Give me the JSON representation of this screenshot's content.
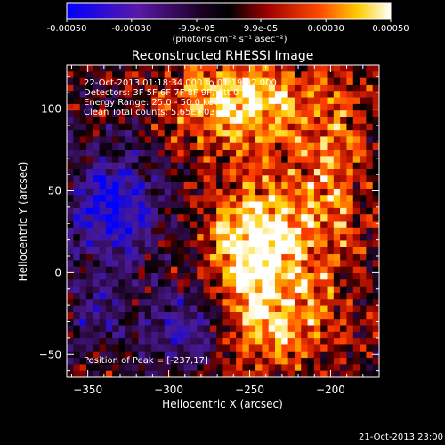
{
  "colorbar": {
    "ticks": [
      "-0.00050",
      "-0.00030",
      "-9.9e-05",
      "9.9e-05",
      "0.00030",
      "0.00050"
    ],
    "tick_values": [
      -0.0005,
      -0.0003,
      -9.9e-05,
      9.9e-05,
      0.0003,
      0.0005
    ],
    "range": [
      -0.0005,
      0.0005
    ],
    "unit": "(photons cm⁻² s⁻¹ asec⁻²)"
  },
  "chart_data": {
    "type": "heatmap",
    "title": "Reconstructed RHESSI Image",
    "xlabel": "Heliocentric X (arcsec)",
    "ylabel": "Heliocentric Y (arcsec)",
    "xlim": [
      -363,
      -170
    ],
    "ylim": [
      -64,
      127
    ],
    "xticks": [
      -350,
      -300,
      -250,
      -200
    ],
    "yticks": [
      -50,
      0,
      50,
      100
    ],
    "xtick_labels": [
      "−350",
      "−300",
      "−250",
      "−200"
    ],
    "ytick_labels": [
      "−50",
      "0",
      "50",
      "100"
    ],
    "colormap": [
      "#0000ff",
      "#4a1a8a",
      "#000000",
      "#8a0000",
      "#ff3000",
      "#ffd400",
      "#ffffff"
    ],
    "peak": {
      "x": -237,
      "y": 17
    },
    "annotations": {
      "time": "22-Oct-2013 01:18:34.000 to 01:19:32.000",
      "detectors": "Detectors: 3F 5F 6F 7F 8F 9F, Att 0",
      "energy": "Energy Range: 25.0 - 50.0 keV",
      "clean": "Clean     Total counts: 5.65E+03",
      "peak_text": "Position of Peak = [-237,17]"
    }
  },
  "footer": {
    "timestamp": "21-Oct-2013 23:00"
  }
}
